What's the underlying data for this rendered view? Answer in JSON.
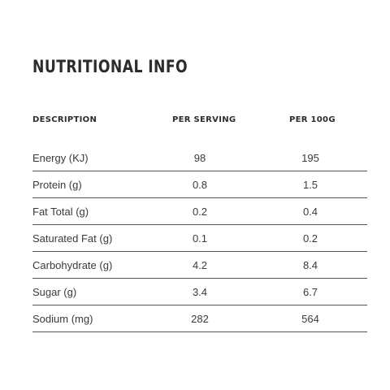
{
  "title": "NUTRITIONAL INFO",
  "table": {
    "headers": {
      "description": "DESCRIPTION",
      "per_serving": "PER SERVING",
      "per_100g": "PER 100G"
    },
    "rows": [
      {
        "description": "Energy (KJ)",
        "per_serving": "98",
        "per_100g": "195"
      },
      {
        "description": "Protein (g)",
        "per_serving": "0.8",
        "per_100g": "1.5"
      },
      {
        "description": "Fat Total (g)",
        "per_serving": "0.2",
        "per_100g": "0.4"
      },
      {
        "description": "Saturated Fat (g)",
        "per_serving": "0.1",
        "per_100g": "0.2"
      },
      {
        "description": "Carbohydrate (g)",
        "per_serving": "4.2",
        "per_100g": "8.4"
      },
      {
        "description": "Sugar (g)",
        "per_serving": "3.4",
        "per_100g": "6.7"
      },
      {
        "description": "Sodium (mg)",
        "per_serving": "282",
        "per_100g": "564"
      }
    ]
  }
}
